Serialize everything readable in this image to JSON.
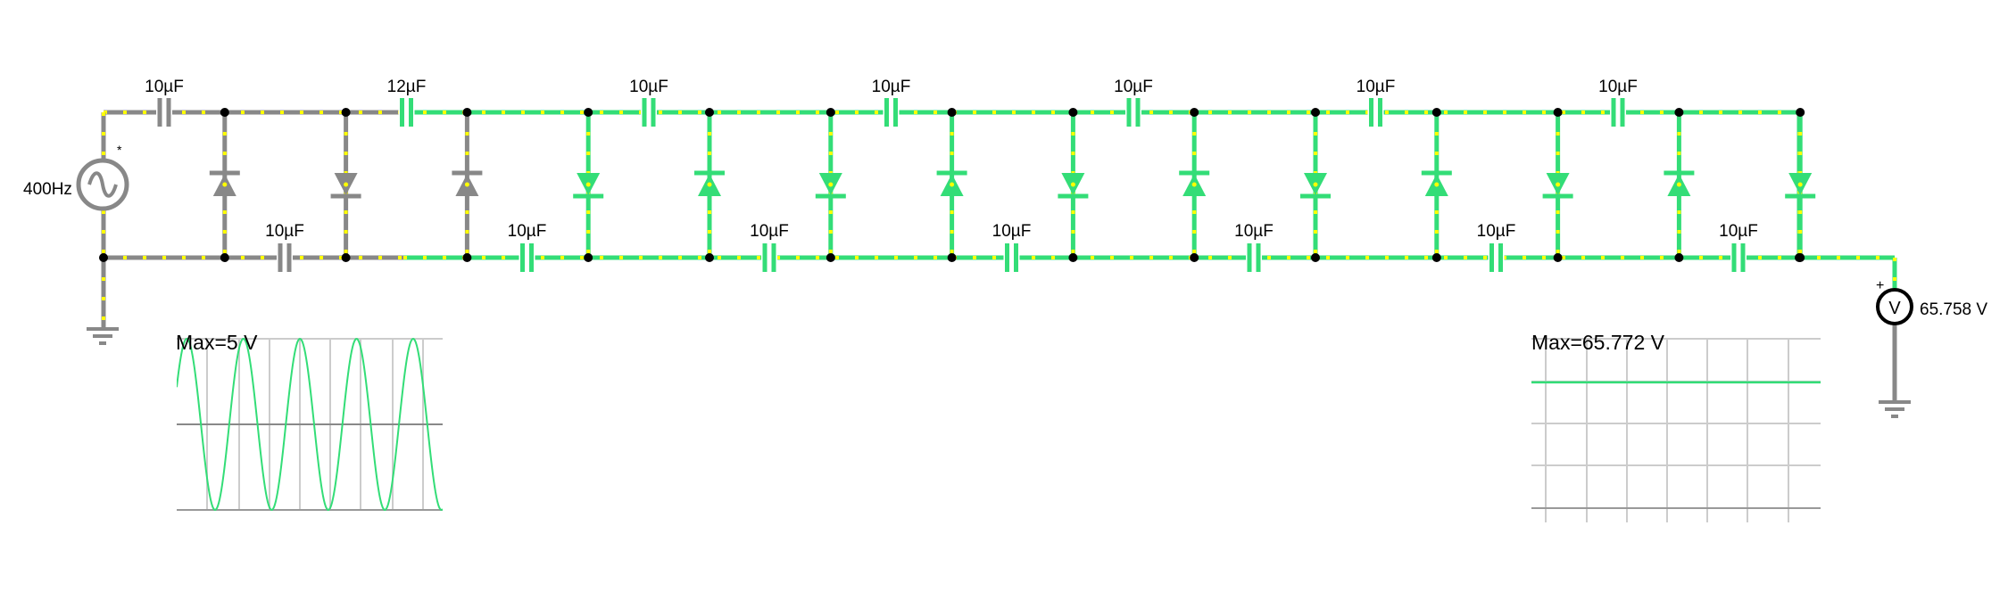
{
  "source": {
    "frequency_label": "400Hz",
    "marker": "*"
  },
  "capacitors_top": [
    "10µF",
    "12µF",
    "10µF",
    "10µF",
    "10µF",
    "10µF",
    "10µF"
  ],
  "capacitors_bottom": [
    "10µF",
    "10µF",
    "10µF",
    "10µF",
    "10µF",
    "10µF",
    "10µF"
  ],
  "voltmeter": {
    "symbol": "V",
    "plus": "+",
    "reading": "65.758 V"
  },
  "scope_left": {
    "label": "Max=5 V",
    "cycles": 4.7
  },
  "scope_right": {
    "label": "Max=65.772 V",
    "level_fraction": 0.98
  },
  "colors": {
    "wire_active": "#33dd77",
    "wire_idle": "#888888",
    "current_dots": "#ffff00",
    "node": "#000000",
    "trace": "#33dd77",
    "grid": "#cccccc"
  },
  "icons": {
    "source": "ac-source-icon",
    "ground": "ground-icon",
    "capacitor": "capacitor-icon",
    "diode": "diode-icon",
    "voltmeter": "voltmeter-icon"
  }
}
